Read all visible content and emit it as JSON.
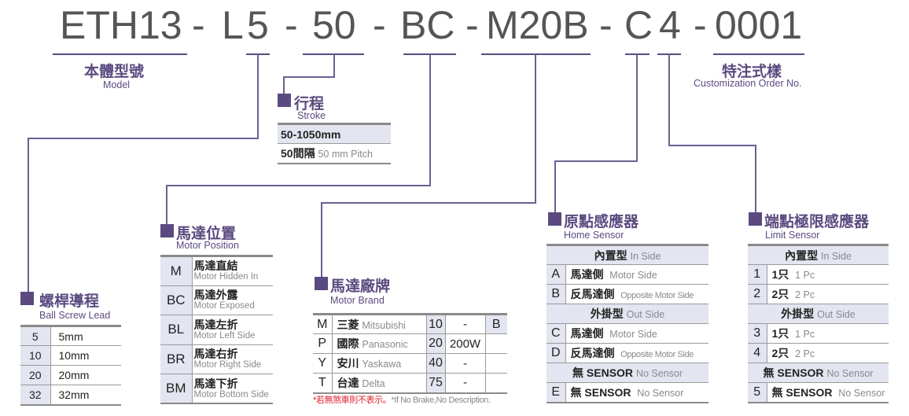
{
  "model_code": {
    "segments": [
      "ETH13",
      "-",
      "L",
      "5",
      "-",
      "50",
      "-",
      "BC",
      "-",
      "M20B",
      "-",
      "C",
      "4",
      "-",
      "0001"
    ]
  },
  "model": {
    "title_zh": "本體型號",
    "title_en": "Model"
  },
  "custom": {
    "title_zh": "特注式樣",
    "title_en": "Customization Order No."
  },
  "stroke": {
    "title_zh": "行程",
    "title_en": "Stroke",
    "rows": [
      {
        "zh": "50-1050mm",
        "en": ""
      },
      {
        "zh": "50間隔",
        "en": "50 mm Pitch"
      }
    ]
  },
  "lead": {
    "title_zh": "螺桿導程",
    "title_en": "Ball Screw Lead",
    "rows": [
      {
        "code": "5",
        "value": "5mm"
      },
      {
        "code": "10",
        "value": "10mm"
      },
      {
        "code": "20",
        "value": "20mm"
      },
      {
        "code": "32",
        "value": "32mm"
      }
    ]
  },
  "motor_position": {
    "title_zh": "馬達位置",
    "title_en": "Motor Position",
    "rows": [
      {
        "code": "M",
        "zh": "馬達直結",
        "en": "Motor Hidden In"
      },
      {
        "code": "BC",
        "zh": "馬達外露",
        "en": "Motor Exposed"
      },
      {
        "code": "BL",
        "zh": "馬達左折",
        "en": "Motor Left Side"
      },
      {
        "code": "BR",
        "zh": "馬達右折",
        "en": "Motor Right Side"
      },
      {
        "code": "BM",
        "zh": "馬達下折",
        "en": "Motor Bottom Side"
      }
    ]
  },
  "motor_brand": {
    "title_zh": "馬達廠牌",
    "title_en": "Motor Brand",
    "rows": [
      {
        "code": "M",
        "zh": "三菱",
        "en": "Mitsubishi",
        "num": "10",
        "power": "-",
        "brake": "B"
      },
      {
        "code": "P",
        "zh": "國際",
        "en": "Panasonic",
        "num": "20",
        "power": "200W",
        "brake": ""
      },
      {
        "code": "Y",
        "zh": "安川",
        "en": "Yaskawa",
        "num": "40",
        "power": "-",
        "brake": ""
      },
      {
        "code": "T",
        "zh": "台達",
        "en": "Delta",
        "num": "75",
        "power": "-",
        "brake": ""
      }
    ],
    "note_zh": "*若無煞車則不表示。",
    "note_en": "*If No Brake,No Description."
  },
  "home_sensor": {
    "title_zh": "原點感應器",
    "title_en": "Home Sensor",
    "rows": [
      {
        "header": true,
        "zh": "內置型",
        "en": "In Side"
      },
      {
        "code": "A",
        "zh": "馬達側",
        "en": "Motor Side"
      },
      {
        "code": "B",
        "zh": "反馬達側",
        "en": "Opposite Motor Side",
        "small": true
      },
      {
        "header": true,
        "zh": "外掛型",
        "en": "Out Side"
      },
      {
        "code": "C",
        "zh": "馬達側",
        "en": "Motor Side"
      },
      {
        "code": "D",
        "zh": "反馬達側",
        "en": "Opposite Motor Side",
        "small": true
      },
      {
        "header": true,
        "zh": "無 SENSOR",
        "en": "No Sensor"
      },
      {
        "code": "E",
        "zh": "無 SENSOR",
        "en": "No Sensor"
      }
    ]
  },
  "limit_sensor": {
    "title_zh": "端點極限感應器",
    "title_en": "Limit Sensor",
    "rows": [
      {
        "header": true,
        "zh": "內置型",
        "en": "In Side"
      },
      {
        "code": "1",
        "zh": "1只",
        "en": "1 Pc"
      },
      {
        "code": "2",
        "zh": "2只",
        "en": "2 Pc"
      },
      {
        "header": true,
        "zh": "外掛型",
        "en": "Out Side"
      },
      {
        "code": "3",
        "zh": "1只",
        "en": "1 Pc"
      },
      {
        "code": "4",
        "zh": "2只",
        "en": "2 Pc"
      },
      {
        "header": true,
        "zh": "無 SENSOR",
        "en": "No Sensor"
      },
      {
        "code": "5",
        "zh": "無 SENSOR",
        "en": "No Sensor"
      }
    ]
  },
  "colors": {
    "accent": "#5b4a80",
    "cell_bg": "#e3e5f1",
    "code_text": "#555555",
    "note_red": "#e0202a"
  }
}
